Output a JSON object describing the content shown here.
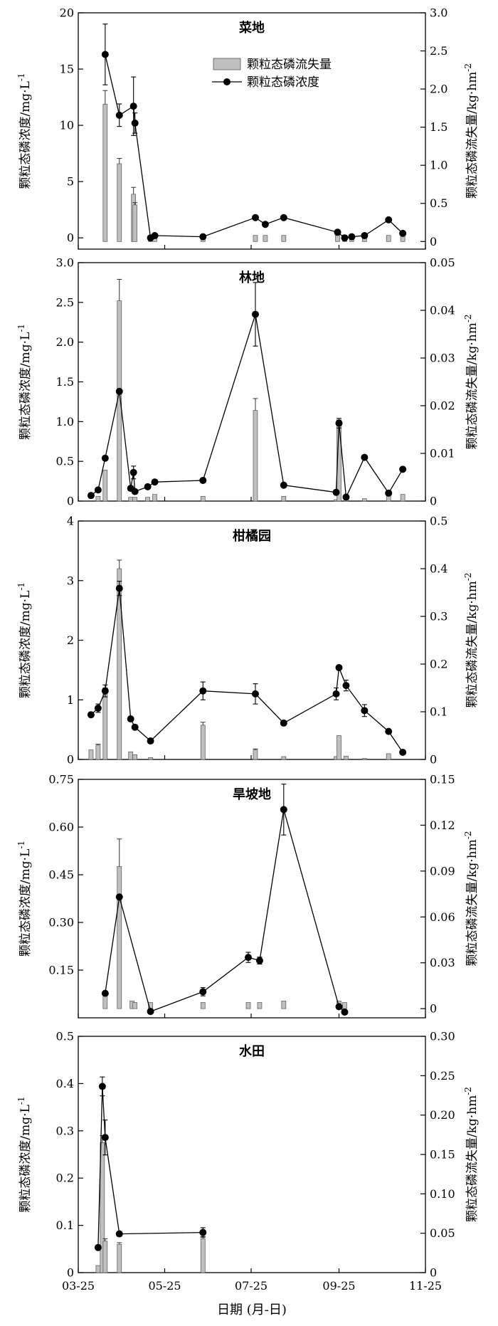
{
  "chart_data": {
    "type": "bar",
    "x_axis": {
      "label": "日期 (月-日)",
      "range": [
        "03-25",
        "11-25"
      ],
      "ticks": [
        "03-25",
        "05-25",
        "07-25",
        "09-25",
        "11-25"
      ]
    },
    "left_axis_label": "颗粒态磷浓度/mg·L",
    "left_axis_unit_sup": "-1",
    "right_axis_label": "颗粒态磷流失量/kg·hm",
    "right_axis_unit_sup": "-2",
    "legend": {
      "bar": "颗粒态磷流失量",
      "line": "颗粒态磷浓度",
      "placement": "upper-middle of first panel"
    },
    "colors": {
      "bar_fill": "#c0c0c0",
      "line": "#000000",
      "marker": "#000000"
    },
    "panels": [
      {
        "title": "菜地",
        "left_ylim": [
          -1,
          20
        ],
        "left_ticks": [
          "0",
          "5",
          "10",
          "15",
          "20"
        ],
        "right_ylim": [
          -0.1,
          3.0
        ],
        "right_ticks": [
          "0",
          "0.5",
          "1.0",
          "1.5",
          "2.0",
          "2.5",
          "3.0"
        ],
        "concentration": {
          "x": [
            "04-13",
            "04-23",
            "05-03",
            "05-04",
            "05-15",
            "05-18",
            "06-21",
            "07-28",
            "08-04",
            "08-17",
            "09-24",
            "09-29",
            "10-04",
            "10-13",
            "10-30",
            "11-09"
          ],
          "y": [
            16.3,
            10.9,
            11.7,
            10.2,
            0.0,
            0.2,
            0.1,
            1.8,
            1.2,
            1.8,
            0.5,
            0.0,
            0.1,
            0.2,
            1.6,
            0.4
          ],
          "err": [
            2.7,
            1.0,
            2.6,
            0.9,
            0,
            0,
            0,
            0,
            0,
            0,
            0,
            0,
            0,
            0,
            0,
            0
          ]
        },
        "loss": {
          "x": [
            "04-13",
            "04-23",
            "05-03",
            "05-04",
            "05-15",
            "05-18",
            "06-21",
            "07-28",
            "08-04",
            "08-17",
            "09-24",
            "09-29",
            "10-04",
            "10-13",
            "10-30",
            "11-09"
          ],
          "y": [
            1.8,
            1.02,
            0.62,
            0.48,
            0.08,
            0.08,
            0.08,
            0.08,
            0.08,
            0.08,
            0.08,
            0.08,
            0.08,
            0.08,
            0.08,
            0.08
          ],
          "err": [
            0.18,
            0.07,
            0.09,
            0.03,
            0,
            0,
            0,
            0,
            0,
            0,
            0,
            0,
            0,
            0,
            0,
            0
          ]
        }
      },
      {
        "title": "林地",
        "left_ylim": [
          0,
          3.0
        ],
        "left_ticks": [
          "0",
          "0.5",
          "1.0",
          "1.5",
          "2.0",
          "2.5",
          "3.0"
        ],
        "right_ylim": [
          0,
          0.05
        ],
        "right_ticks": [
          "0",
          "0.01",
          "0.02",
          "0.03",
          "0.04",
          "0.05"
        ],
        "concentration": {
          "x": [
            "04-03",
            "04-08",
            "04-13",
            "04-23",
            "05-01",
            "05-03",
            "05-04",
            "05-13",
            "05-18",
            "06-21",
            "07-28",
            "08-17",
            "09-23",
            "09-25",
            "09-30",
            "10-13",
            "10-30",
            "11-09"
          ],
          "y": [
            0.07,
            0.14,
            0.54,
            1.38,
            0.16,
            0.36,
            0.12,
            0.18,
            0.24,
            0.26,
            2.35,
            0.2,
            0.11,
            0.98,
            0.05,
            0.55,
            0.1,
            0.4
          ],
          "err": [
            0,
            0,
            0,
            0,
            0,
            0.08,
            0,
            0,
            0,
            0,
            0.4,
            0,
            0,
            0.06,
            0,
            0,
            0,
            0
          ]
        },
        "loss": {
          "x": [
            "04-08",
            "04-13",
            "04-23",
            "05-01",
            "05-04",
            "05-13",
            "05-18",
            "06-21",
            "07-28",
            "08-17",
            "09-23",
            "09-25",
            "09-30",
            "10-13",
            "10-30",
            "11-09"
          ],
          "y": [
            0.001,
            0.0065,
            0.042,
            0.0008,
            0.0008,
            0.0008,
            0.0014,
            0.001,
            0.019,
            0.001,
            0.0003,
            0.016,
            0.0008,
            0.0005,
            0.0012,
            0.0014
          ],
          "err": [
            0,
            0,
            0.0045,
            0,
            0,
            0,
            0,
            0,
            0.0025,
            0,
            0,
            0.001,
            0,
            0,
            0,
            0
          ]
        }
      },
      {
        "title": "柑橘园",
        "left_ylim": [
          0,
          4
        ],
        "left_ticks": [
          "0",
          "1",
          "2",
          "3",
          "4"
        ],
        "right_ylim": [
          0,
          0.5
        ],
        "right_ticks": [
          "0",
          "0.1",
          "0.2",
          "0.3",
          "0.4",
          "0.5"
        ],
        "concentration": {
          "x": [
            "04-03",
            "04-08",
            "04-13",
            "04-23",
            "05-01",
            "05-04",
            "05-15",
            "06-21",
            "07-28",
            "08-17",
            "09-23",
            "09-25",
            "09-30",
            "10-13",
            "10-30",
            "11-09"
          ],
          "y": [
            0.75,
            0.86,
            1.15,
            2.87,
            0.68,
            0.54,
            0.31,
            1.15,
            1.1,
            0.61,
            1.1,
            1.54,
            1.24,
            0.82,
            0.47,
            0.12
          ],
          "err": [
            0,
            0.07,
            0.1,
            0.12,
            0,
            0,
            0,
            0.15,
            0.17,
            0,
            0.1,
            0,
            0.09,
            0.1,
            0,
            0
          ]
        },
        "loss": {
          "x": [
            "04-03",
            "04-08",
            "04-13",
            "04-23",
            "05-01",
            "05-04",
            "05-15",
            "06-21",
            "07-28",
            "08-17",
            "09-23",
            "09-25",
            "09-30",
            "10-13",
            "10-30"
          ],
          "y": [
            0.02,
            0.03,
            0.14,
            0.4,
            0.016,
            0.01,
            0.004,
            0.072,
            0.02,
            0.006,
            0.006,
            0.05,
            0.007,
            0.002,
            0.012
          ],
          "err": [
            0,
            0.002,
            0.01,
            0.018,
            0,
            0,
            0,
            0.006,
            0.002,
            0,
            0,
            0,
            0,
            0,
            0
          ]
        }
      },
      {
        "title": "旱坡地",
        "left_ylim": [
          0,
          0.75
        ],
        "left_ticks": [
          "0.15",
          "0.30",
          "0.45",
          "0.60",
          "0.75"
        ],
        "right_ylim": [
          -0.006,
          0.15
        ],
        "right_ticks": [
          "0",
          "0.03",
          "0.06",
          "0.09",
          "0.12",
          "0.15"
        ],
        "concentration": {
          "x": [
            "04-13",
            "04-23",
            "05-15",
            "06-21",
            "07-23",
            "07-31",
            "08-17",
            "09-25",
            "09-29"
          ],
          "y": [
            0.077,
            0.38,
            0.02,
            0.082,
            0.19,
            0.18,
            0.655,
            0.035,
            0.018
          ],
          "err": [
            0,
            0,
            0,
            0.013,
            0.016,
            0.011,
            0.08,
            0,
            0
          ]
        },
        "loss": {
          "x": [
            "04-13",
            "04-23",
            "05-02",
            "05-04",
            "05-15",
            "06-21",
            "07-23",
            "07-31",
            "08-17",
            "09-25",
            "09-29"
          ],
          "y": [
            0.01,
            0.093,
            0.005,
            0.004,
            0.004,
            0.004,
            0.004,
            0.004,
            0.005,
            0.005,
            0.004
          ],
          "err": [
            0,
            0.018,
            0,
            0,
            0,
            0,
            0,
            0,
            0,
            0,
            0
          ]
        }
      },
      {
        "title": "水田",
        "left_ylim": [
          0,
          0.5
        ],
        "left_ticks": [
          "0",
          "0.1",
          "0.2",
          "0.3",
          "0.4",
          "0.5"
        ],
        "right_ylim": [
          0,
          0.3
        ],
        "right_ticks": [
          "0",
          "0.05",
          "0.10",
          "0.15",
          "0.20",
          "0.25",
          "0.30"
        ],
        "concentration": {
          "x": [
            "04-08",
            "04-11",
            "04-13",
            "04-23",
            "06-21"
          ],
          "y": [
            0.053,
            0.394,
            0.286,
            0.082,
            0.085
          ],
          "err": [
            0,
            0.02,
            0.037,
            0,
            0.01
          ]
        },
        "loss": {
          "x": [
            "04-08",
            "04-11",
            "04-13",
            "04-23",
            "06-21"
          ],
          "y": [
            0.009,
            0.165,
            0.04,
            0.036,
            0.043
          ],
          "err": [
            0,
            0.009,
            0.003,
            0.002,
            0.003
          ]
        }
      }
    ]
  }
}
